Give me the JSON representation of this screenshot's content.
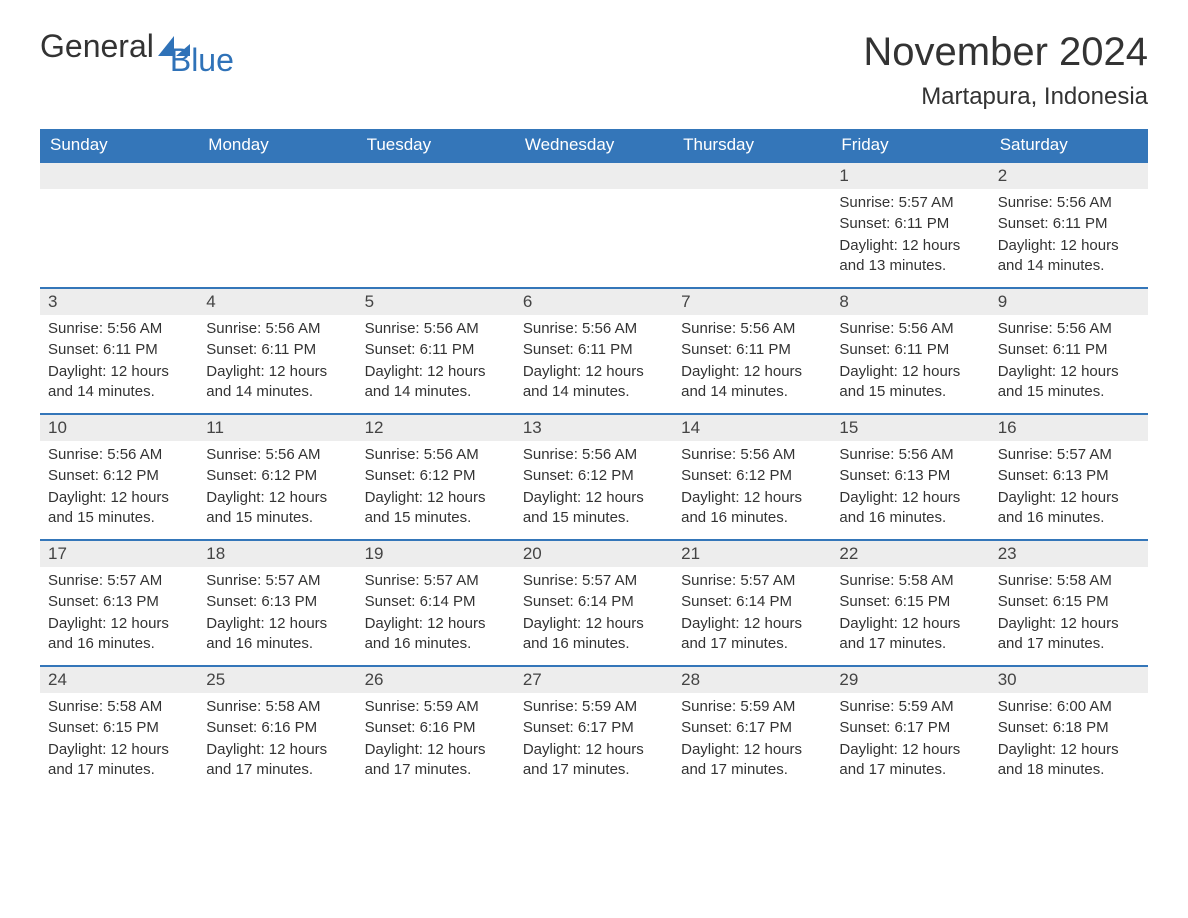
{
  "brand": {
    "part1": "General",
    "part2": "Blue"
  },
  "title": {
    "month": "November 2024",
    "location": "Martapura, Indonesia"
  },
  "colors": {
    "header_bg": "#3476b9",
    "header_text": "#ffffff",
    "daynum_bg": "#ededed",
    "daynum_border": "#3476b9",
    "body_text": "#333333",
    "brand_blue": "#2f72b8",
    "page_bg": "#ffffff"
  },
  "layout": {
    "columns": 7,
    "rows": 5,
    "start_day_index": 5
  },
  "weekdays": [
    "Sunday",
    "Monday",
    "Tuesday",
    "Wednesday",
    "Thursday",
    "Friday",
    "Saturday"
  ],
  "labels": {
    "sunrise": "Sunrise:",
    "sunset": "Sunset:",
    "daylight": "Daylight:"
  },
  "days": [
    {
      "n": 1,
      "sunrise": "5:57 AM",
      "sunset": "6:11 PM",
      "daylight": "12 hours and 13 minutes."
    },
    {
      "n": 2,
      "sunrise": "5:56 AM",
      "sunset": "6:11 PM",
      "daylight": "12 hours and 14 minutes."
    },
    {
      "n": 3,
      "sunrise": "5:56 AM",
      "sunset": "6:11 PM",
      "daylight": "12 hours and 14 minutes."
    },
    {
      "n": 4,
      "sunrise": "5:56 AM",
      "sunset": "6:11 PM",
      "daylight": "12 hours and 14 minutes."
    },
    {
      "n": 5,
      "sunrise": "5:56 AM",
      "sunset": "6:11 PM",
      "daylight": "12 hours and 14 minutes."
    },
    {
      "n": 6,
      "sunrise": "5:56 AM",
      "sunset": "6:11 PM",
      "daylight": "12 hours and 14 minutes."
    },
    {
      "n": 7,
      "sunrise": "5:56 AM",
      "sunset": "6:11 PM",
      "daylight": "12 hours and 14 minutes."
    },
    {
      "n": 8,
      "sunrise": "5:56 AM",
      "sunset": "6:11 PM",
      "daylight": "12 hours and 15 minutes."
    },
    {
      "n": 9,
      "sunrise": "5:56 AM",
      "sunset": "6:11 PM",
      "daylight": "12 hours and 15 minutes."
    },
    {
      "n": 10,
      "sunrise": "5:56 AM",
      "sunset": "6:12 PM",
      "daylight": "12 hours and 15 minutes."
    },
    {
      "n": 11,
      "sunrise": "5:56 AM",
      "sunset": "6:12 PM",
      "daylight": "12 hours and 15 minutes."
    },
    {
      "n": 12,
      "sunrise": "5:56 AM",
      "sunset": "6:12 PM",
      "daylight": "12 hours and 15 minutes."
    },
    {
      "n": 13,
      "sunrise": "5:56 AM",
      "sunset": "6:12 PM",
      "daylight": "12 hours and 15 minutes."
    },
    {
      "n": 14,
      "sunrise": "5:56 AM",
      "sunset": "6:12 PM",
      "daylight": "12 hours and 16 minutes."
    },
    {
      "n": 15,
      "sunrise": "5:56 AM",
      "sunset": "6:13 PM",
      "daylight": "12 hours and 16 minutes."
    },
    {
      "n": 16,
      "sunrise": "5:57 AM",
      "sunset": "6:13 PM",
      "daylight": "12 hours and 16 minutes."
    },
    {
      "n": 17,
      "sunrise": "5:57 AM",
      "sunset": "6:13 PM",
      "daylight": "12 hours and 16 minutes."
    },
    {
      "n": 18,
      "sunrise": "5:57 AM",
      "sunset": "6:13 PM",
      "daylight": "12 hours and 16 minutes."
    },
    {
      "n": 19,
      "sunrise": "5:57 AM",
      "sunset": "6:14 PM",
      "daylight": "12 hours and 16 minutes."
    },
    {
      "n": 20,
      "sunrise": "5:57 AM",
      "sunset": "6:14 PM",
      "daylight": "12 hours and 16 minutes."
    },
    {
      "n": 21,
      "sunrise": "5:57 AM",
      "sunset": "6:14 PM",
      "daylight": "12 hours and 17 minutes."
    },
    {
      "n": 22,
      "sunrise": "5:58 AM",
      "sunset": "6:15 PM",
      "daylight": "12 hours and 17 minutes."
    },
    {
      "n": 23,
      "sunrise": "5:58 AM",
      "sunset": "6:15 PM",
      "daylight": "12 hours and 17 minutes."
    },
    {
      "n": 24,
      "sunrise": "5:58 AM",
      "sunset": "6:15 PM",
      "daylight": "12 hours and 17 minutes."
    },
    {
      "n": 25,
      "sunrise": "5:58 AM",
      "sunset": "6:16 PM",
      "daylight": "12 hours and 17 minutes."
    },
    {
      "n": 26,
      "sunrise": "5:59 AM",
      "sunset": "6:16 PM",
      "daylight": "12 hours and 17 minutes."
    },
    {
      "n": 27,
      "sunrise": "5:59 AM",
      "sunset": "6:17 PM",
      "daylight": "12 hours and 17 minutes."
    },
    {
      "n": 28,
      "sunrise": "5:59 AM",
      "sunset": "6:17 PM",
      "daylight": "12 hours and 17 minutes."
    },
    {
      "n": 29,
      "sunrise": "5:59 AM",
      "sunset": "6:17 PM",
      "daylight": "12 hours and 17 minutes."
    },
    {
      "n": 30,
      "sunrise": "6:00 AM",
      "sunset": "6:18 PM",
      "daylight": "12 hours and 18 minutes."
    }
  ]
}
